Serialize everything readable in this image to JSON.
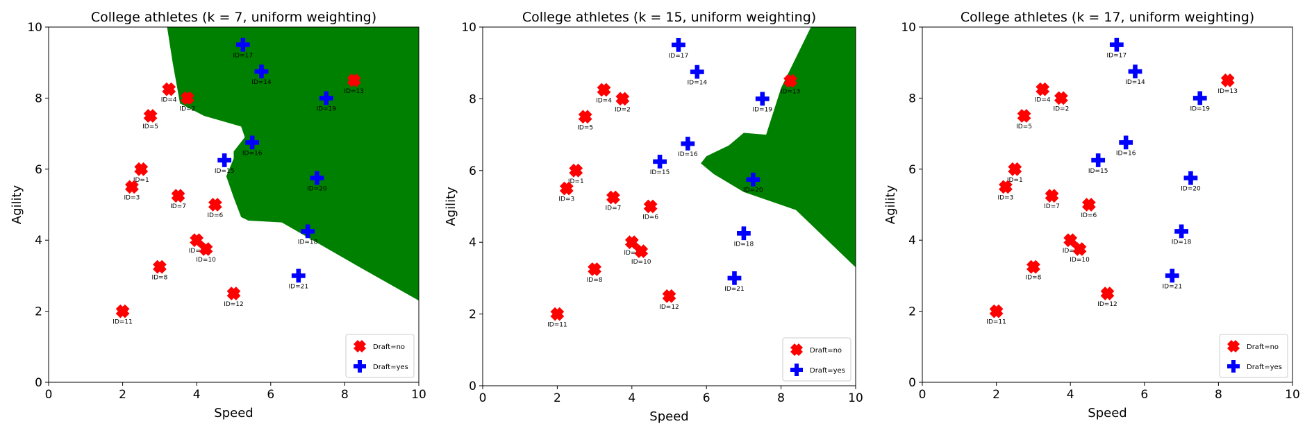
{
  "chart_data": [
    {
      "type": "scatter",
      "title": "College athletes (k = 7, uniform weighting)",
      "xlabel": "Speed",
      "ylabel": "Agility",
      "xlim": [
        0,
        10
      ],
      "ylim": [
        0,
        10
      ],
      "xticks": [
        "0",
        "2",
        "4",
        "6",
        "8",
        "10"
      ],
      "yticks": [
        "0",
        "2",
        "4",
        "6",
        "8",
        "10"
      ],
      "grid": false,
      "legend_position": "bottom-right",
      "decision_region": {
        "label": "Draft=yes",
        "color": "#008000",
        "polygon": [
          [
            3.2,
            10
          ],
          [
            10,
            10
          ],
          [
            10,
            2.3
          ],
          [
            8.3,
            3.3
          ],
          [
            6.3,
            4.5
          ],
          [
            5.4,
            4.55
          ],
          [
            5.2,
            4.65
          ],
          [
            5.0,
            5.2
          ],
          [
            4.8,
            5.8
          ],
          [
            5.0,
            6.3
          ],
          [
            5.0,
            6.5
          ],
          [
            5.3,
            6.9
          ],
          [
            5.2,
            7.2
          ],
          [
            4.2,
            7.5
          ],
          [
            3.55,
            7.85
          ],
          [
            3.35,
            9.0
          ]
        ]
      },
      "series": [
        {
          "name": "Draft=no",
          "color": "#ff0000",
          "marker": "X",
          "points": [
            {
              "id": "ID=1",
              "x": 2.5,
              "y": 6.0
            },
            {
              "id": "ID=2",
              "x": 3.75,
              "y": 8.0
            },
            {
              "id": "ID=3",
              "x": 2.25,
              "y": 5.5
            },
            {
              "id": "ID=4",
              "x": 3.25,
              "y": 8.25
            },
            {
              "id": "ID=5",
              "x": 2.75,
              "y": 7.5
            },
            {
              "id": "ID=6",
              "x": 4.5,
              "y": 5.0
            },
            {
              "id": "ID=7",
              "x": 3.5,
              "y": 5.25
            },
            {
              "id": "ID=8",
              "x": 3.0,
              "y": 3.25
            },
            {
              "id": "ID=9",
              "x": 4.0,
              "y": 4.0
            },
            {
              "id": "ID=10",
              "x": 4.25,
              "y": 3.75
            },
            {
              "id": "ID=11",
              "x": 2.0,
              "y": 2.0
            },
            {
              "id": "ID=12",
              "x": 5.0,
              "y": 2.5
            },
            {
              "id": "ID=13",
              "x": 8.25,
              "y": 8.5
            }
          ]
        },
        {
          "name": "Draft=yes",
          "color": "#0000ff",
          "marker": "P",
          "points": [
            {
              "id": "ID=14",
              "x": 5.75,
              "y": 8.75
            },
            {
              "id": "ID=15",
              "x": 4.75,
              "y": 6.25
            },
            {
              "id": "ID=16",
              "x": 5.5,
              "y": 6.75
            },
            {
              "id": "ID=17",
              "x": 5.25,
              "y": 9.5
            },
            {
              "id": "ID=18",
              "x": 7.0,
              "y": 4.25
            },
            {
              "id": "ID=19",
              "x": 7.5,
              "y": 8.0
            },
            {
              "id": "ID=20",
              "x": 7.25,
              "y": 5.75
            },
            {
              "id": "ID=21",
              "x": 6.75,
              "y": 3.0
            }
          ]
        }
      ]
    },
    {
      "type": "scatter",
      "title": "College athletes (k = 15, uniform weighting)",
      "xlabel": "Speed",
      "ylabel": "Agility",
      "xlim": [
        0,
        10
      ],
      "ylim": [
        0,
        10
      ],
      "xticks": [
        "0",
        "2",
        "4",
        "6",
        "8",
        "10"
      ],
      "yticks": [
        "0",
        "2",
        "4",
        "6",
        "8",
        "10"
      ],
      "grid": false,
      "legend_position": "bottom-right",
      "decision_region": {
        "label": "Draft=yes",
        "color": "#008000",
        "polygon": [
          [
            7.6,
            7.0
          ],
          [
            8.0,
            8.3
          ],
          [
            8.8,
            10
          ],
          [
            10,
            10
          ],
          [
            10,
            3.3
          ],
          [
            8.4,
            4.9
          ],
          [
            7.0,
            5.4
          ],
          [
            6.2,
            5.9
          ],
          [
            5.85,
            6.2
          ],
          [
            6.0,
            6.4
          ],
          [
            6.6,
            6.7
          ],
          [
            7.0,
            7.05
          ]
        ]
      },
      "series": [
        {
          "name": "Draft=no",
          "color": "#ff0000",
          "marker": "X",
          "points": [
            {
              "id": "ID=1",
              "x": 2.5,
              "y": 6.0
            },
            {
              "id": "ID=2",
              "x": 3.75,
              "y": 8.0
            },
            {
              "id": "ID=3",
              "x": 2.25,
              "y": 5.5
            },
            {
              "id": "ID=4",
              "x": 3.25,
              "y": 8.25
            },
            {
              "id": "ID=5",
              "x": 2.75,
              "y": 7.5
            },
            {
              "id": "ID=6",
              "x": 4.5,
              "y": 5.0
            },
            {
              "id": "ID=7",
              "x": 3.5,
              "y": 5.25
            },
            {
              "id": "ID=8",
              "x": 3.0,
              "y": 3.25
            },
            {
              "id": "ID=9",
              "x": 4.0,
              "y": 4.0
            },
            {
              "id": "ID=10",
              "x": 4.25,
              "y": 3.75
            },
            {
              "id": "ID=11",
              "x": 2.0,
              "y": 2.0
            },
            {
              "id": "ID=12",
              "x": 5.0,
              "y": 2.5
            },
            {
              "id": "ID=13",
              "x": 8.25,
              "y": 8.5
            }
          ]
        },
        {
          "name": "Draft=yes",
          "color": "#0000ff",
          "marker": "P",
          "points": [
            {
              "id": "ID=14",
              "x": 5.75,
              "y": 8.75
            },
            {
              "id": "ID=15",
              "x": 4.75,
              "y": 6.25
            },
            {
              "id": "ID=16",
              "x": 5.5,
              "y": 6.75
            },
            {
              "id": "ID=17",
              "x": 5.25,
              "y": 9.5
            },
            {
              "id": "ID=18",
              "x": 7.0,
              "y": 4.25
            },
            {
              "id": "ID=19",
              "x": 7.5,
              "y": 8.0
            },
            {
              "id": "ID=20",
              "x": 7.25,
              "y": 5.75
            },
            {
              "id": "ID=21",
              "x": 6.75,
              "y": 3.0
            }
          ]
        }
      ]
    },
    {
      "type": "scatter",
      "title": "College athletes (k = 17, uniform weighting)",
      "xlabel": "Speed",
      "ylabel": "Agility",
      "xlim": [
        0,
        10
      ],
      "ylim": [
        0,
        10
      ],
      "xticks": [
        "0",
        "2",
        "4",
        "6",
        "8",
        "10"
      ],
      "yticks": [
        "0",
        "2",
        "4",
        "6",
        "8",
        "10"
      ],
      "grid": false,
      "legend_position": "bottom-right",
      "decision_region": null,
      "series": [
        {
          "name": "Draft=no",
          "color": "#ff0000",
          "marker": "X",
          "points": [
            {
              "id": "ID=1",
              "x": 2.5,
              "y": 6.0
            },
            {
              "id": "ID=2",
              "x": 3.75,
              "y": 8.0
            },
            {
              "id": "ID=3",
              "x": 2.25,
              "y": 5.5
            },
            {
              "id": "ID=4",
              "x": 3.25,
              "y": 8.25
            },
            {
              "id": "ID=5",
              "x": 2.75,
              "y": 7.5
            },
            {
              "id": "ID=6",
              "x": 4.5,
              "y": 5.0
            },
            {
              "id": "ID=7",
              "x": 3.5,
              "y": 5.25
            },
            {
              "id": "ID=8",
              "x": 3.0,
              "y": 3.25
            },
            {
              "id": "ID=9",
              "x": 4.0,
              "y": 4.0
            },
            {
              "id": "ID=10",
              "x": 4.25,
              "y": 3.75
            },
            {
              "id": "ID=11",
              "x": 2.0,
              "y": 2.0
            },
            {
              "id": "ID=12",
              "x": 5.0,
              "y": 2.5
            },
            {
              "id": "ID=13",
              "x": 8.25,
              "y": 8.5
            }
          ]
        },
        {
          "name": "Draft=yes",
          "color": "#0000ff",
          "marker": "P",
          "points": [
            {
              "id": "ID=14",
              "x": 5.75,
              "y": 8.75
            },
            {
              "id": "ID=15",
              "x": 4.75,
              "y": 6.25
            },
            {
              "id": "ID=16",
              "x": 5.5,
              "y": 6.75
            },
            {
              "id": "ID=17",
              "x": 5.25,
              "y": 9.5
            },
            {
              "id": "ID=18",
              "x": 7.0,
              "y": 4.25
            },
            {
              "id": "ID=19",
              "x": 7.5,
              "y": 8.0
            },
            {
              "id": "ID=20",
              "x": 7.25,
              "y": 5.75
            },
            {
              "id": "ID=21",
              "x": 6.75,
              "y": 3.0
            }
          ]
        }
      ]
    }
  ]
}
